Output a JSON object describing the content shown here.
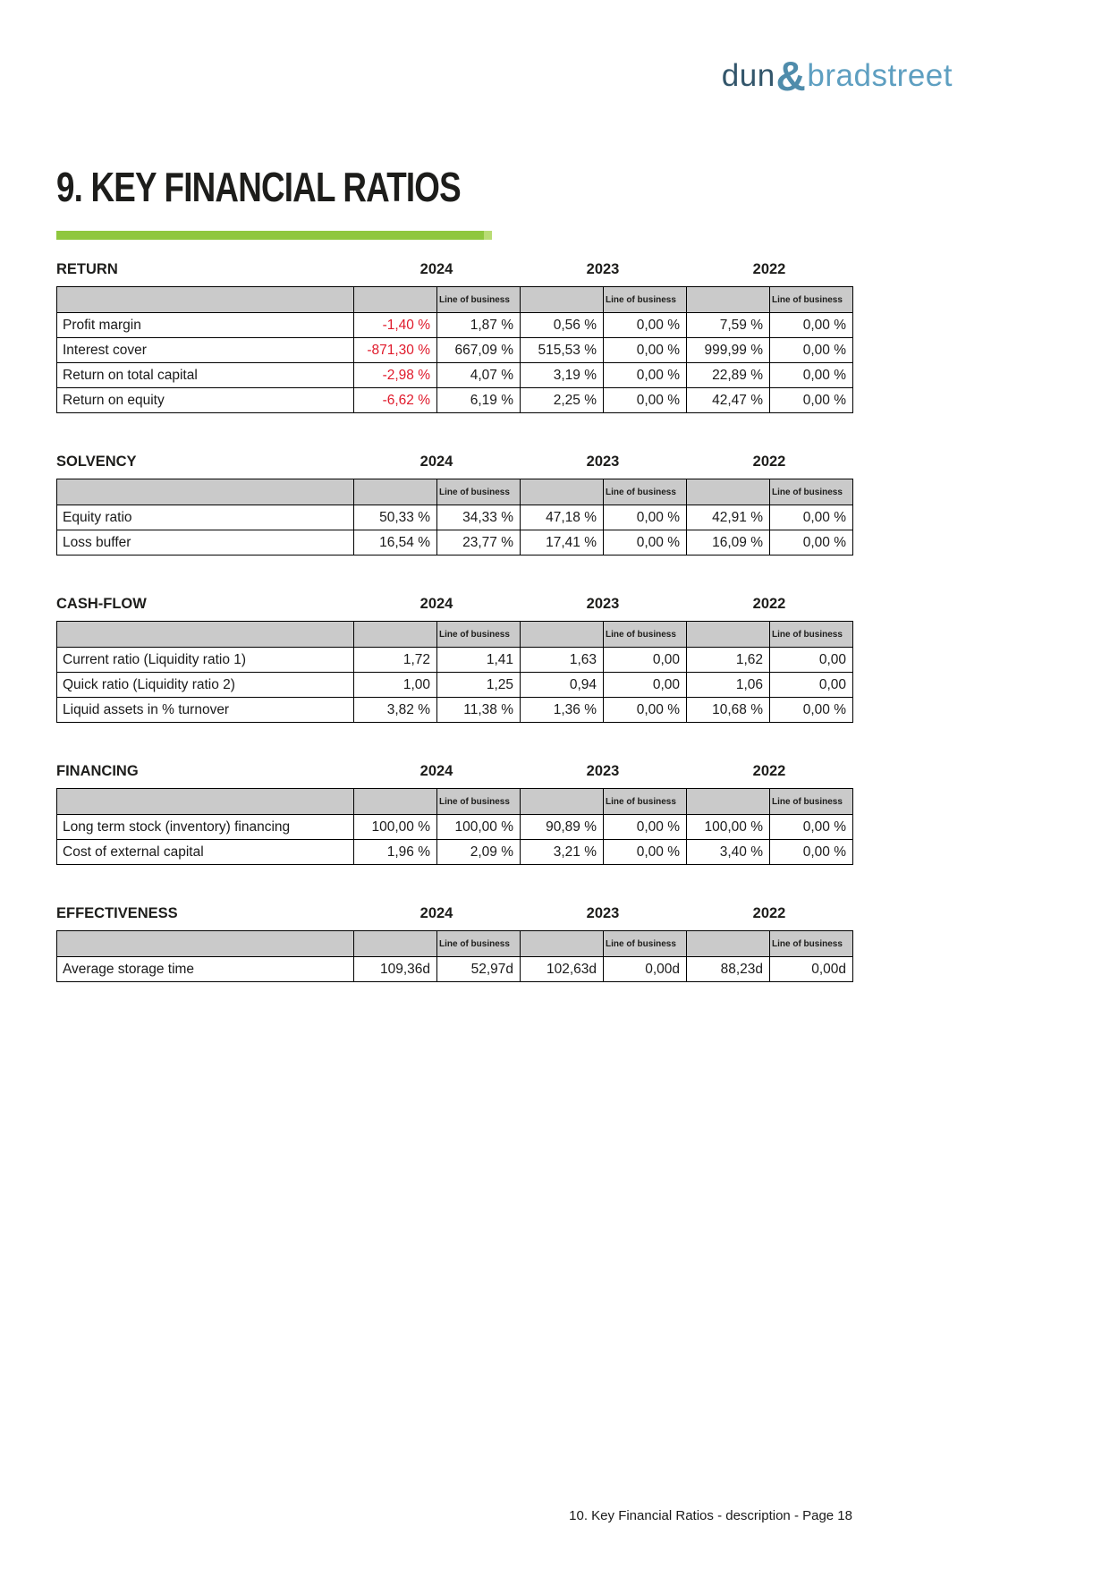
{
  "logo": {
    "dun": "dun",
    "ampersand": "&",
    "bradstreet": "bradstreet"
  },
  "title": "9. KEY FINANCIAL RATIOS",
  "footer": "10. Key Financial Ratios - description - Page 18",
  "table_header": {
    "lob": "Line of business",
    "years": [
      "2024",
      "2023",
      "2022"
    ]
  },
  "sections": [
    {
      "title": "RETURN",
      "rows": [
        {
          "label": "Profit margin",
          "values": [
            "-1,40 %",
            "1,87 %",
            "0,56 %",
            "0,00 %",
            "7,59 %",
            "0,00 %"
          ]
        },
        {
          "label": "Interest cover",
          "values": [
            "-871,30 %",
            "667,09 %",
            "515,53 %",
            "0,00 %",
            "999,99 %",
            "0,00 %"
          ]
        },
        {
          "label": "Return on total capital",
          "values": [
            "-2,98 %",
            "4,07 %",
            "3,19 %",
            "0,00 %",
            "22,89 %",
            "0,00 %"
          ]
        },
        {
          "label": "Return on equity",
          "values": [
            "-6,62 %",
            "6,19 %",
            "2,25 %",
            "0,00 %",
            "42,47 %",
            "0,00 %"
          ]
        }
      ]
    },
    {
      "title": "SOLVENCY",
      "rows": [
        {
          "label": "Equity ratio",
          "values": [
            "50,33 %",
            "34,33 %",
            "47,18 %",
            "0,00 %",
            "42,91 %",
            "0,00 %"
          ]
        },
        {
          "label": "Loss buffer",
          "values": [
            "16,54 %",
            "23,77 %",
            "17,41 %",
            "0,00 %",
            "16,09 %",
            "0,00 %"
          ]
        }
      ]
    },
    {
      "title": "CASH-FLOW",
      "rows": [
        {
          "label": "Current ratio (Liquidity ratio 1)",
          "values": [
            "1,72",
            "1,41",
            "1,63",
            "0,00",
            "1,62",
            "0,00"
          ]
        },
        {
          "label": "Quick ratio (Liquidity ratio 2)",
          "values": [
            "1,00",
            "1,25",
            "0,94",
            "0,00",
            "1,06",
            "0,00"
          ]
        },
        {
          "label": "Liquid assets in % turnover",
          "values": [
            "3,82 %",
            "11,38 %",
            "1,36 %",
            "0,00 %",
            "10,68 %",
            "0,00 %"
          ]
        }
      ]
    },
    {
      "title": "FINANCING",
      "rows": [
        {
          "label": "Long term stock (inventory) financing",
          "values": [
            "100,00 %",
            "100,00 %",
            "90,89 %",
            "0,00 %",
            "100,00 %",
            "0,00 %"
          ]
        },
        {
          "label": "Cost of external capital",
          "values": [
            "1,96 %",
            "2,09 %",
            "3,21 %",
            "0,00 %",
            "3,40 %",
            "0,00 %"
          ]
        }
      ]
    },
    {
      "title": "EFFECTIVENESS",
      "rows": [
        {
          "label": "Average storage time",
          "values": [
            "109,36d",
            "52,97d",
            "102,63d",
            "0,00d",
            "88,23d",
            "0,00d"
          ]
        }
      ]
    }
  ],
  "colors": {
    "accent_green": "#8fc73e",
    "negative_red": "#e01a2b",
    "header_gray": "#cacaca",
    "logo_dark": "#33566b",
    "logo_mid": "#4f8cab",
    "logo_light": "#5e9fc1"
  }
}
